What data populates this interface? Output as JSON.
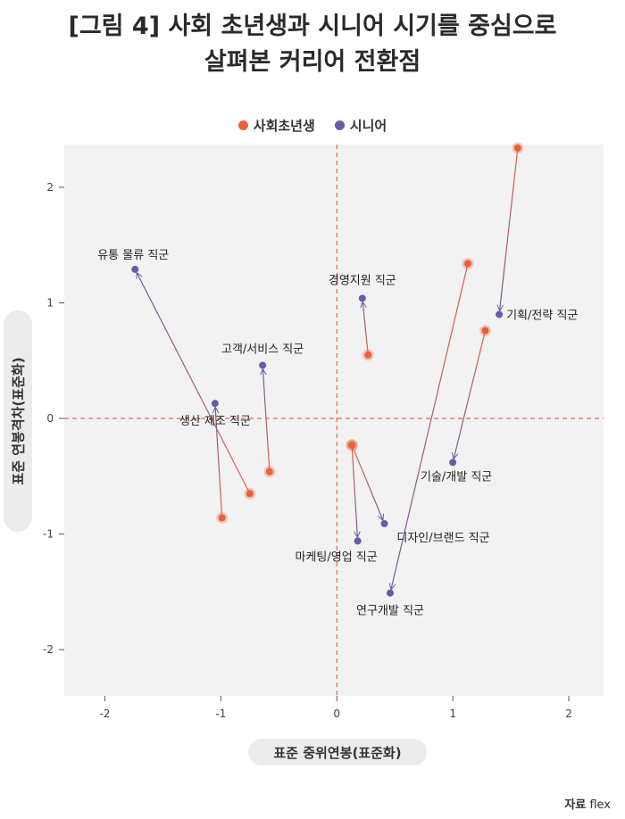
{
  "title_line1": "[그림 4] 사회 초년생과 시니어 시기를 중심으로",
  "title_line2": "살펴본 커리어 전환점",
  "legend": [
    {
      "label": "사회초년생",
      "color": "#e8613a"
    },
    {
      "label": "시니어",
      "color": "#6b5aa6"
    }
  ],
  "ylabel": "표준 연봉격차(표준화)",
  "xlabel": "표준 중위연봉(표준화)",
  "source_label": "자료",
  "source_name": "flex",
  "chart_data": {
    "type": "scatter",
    "xlim": [
      -2.35,
      2.3
    ],
    "ylim": [
      -2.4,
      2.37
    ],
    "xticks": [
      -2,
      -1,
      0,
      1,
      2
    ],
    "yticks": [
      -2,
      -1,
      0,
      1,
      2
    ],
    "reference_lines": {
      "x": 0,
      "y": 0
    },
    "grid": false,
    "series": [
      {
        "name": "사회초년생",
        "color": "#e8613a"
      },
      {
        "name": "시니어",
        "color": "#6b5aa6"
      }
    ],
    "groups": [
      {
        "name": "유통 물류 직군",
        "early": [
          -0.75,
          -0.65
        ],
        "senior": [
          -1.74,
          1.29
        ]
      },
      {
        "name": "생산 제조 직군",
        "early": [
          -0.99,
          -0.86
        ],
        "senior": [
          -1.05,
          0.13
        ]
      },
      {
        "name": "고객/서비스 직군",
        "early": [
          -0.58,
          -0.46
        ],
        "senior": [
          -0.64,
          0.46
        ]
      },
      {
        "name": "경영지원 직군",
        "early": [
          0.27,
          0.55
        ],
        "senior": [
          0.22,
          1.04
        ]
      },
      {
        "name": "마케팅/영업 직군",
        "early": [
          0.13,
          -0.23
        ],
        "senior": [
          0.18,
          -1.06
        ]
      },
      {
        "name": "디자인/브랜드 직군",
        "early": [
          0.13,
          -0.23
        ],
        "senior": [
          0.41,
          -0.91
        ]
      },
      {
        "name": "연구개발 직군",
        "early": [
          1.13,
          1.34
        ],
        "senior": [
          0.46,
          -1.51
        ]
      },
      {
        "name": "기술/개발 직군",
        "early": [
          1.28,
          0.76
        ],
        "senior": [
          1.0,
          -0.38
        ]
      },
      {
        "name": "기획/전략 직군",
        "early": [
          1.56,
          2.34
        ],
        "senior": [
          1.4,
          0.9
        ]
      }
    ]
  }
}
